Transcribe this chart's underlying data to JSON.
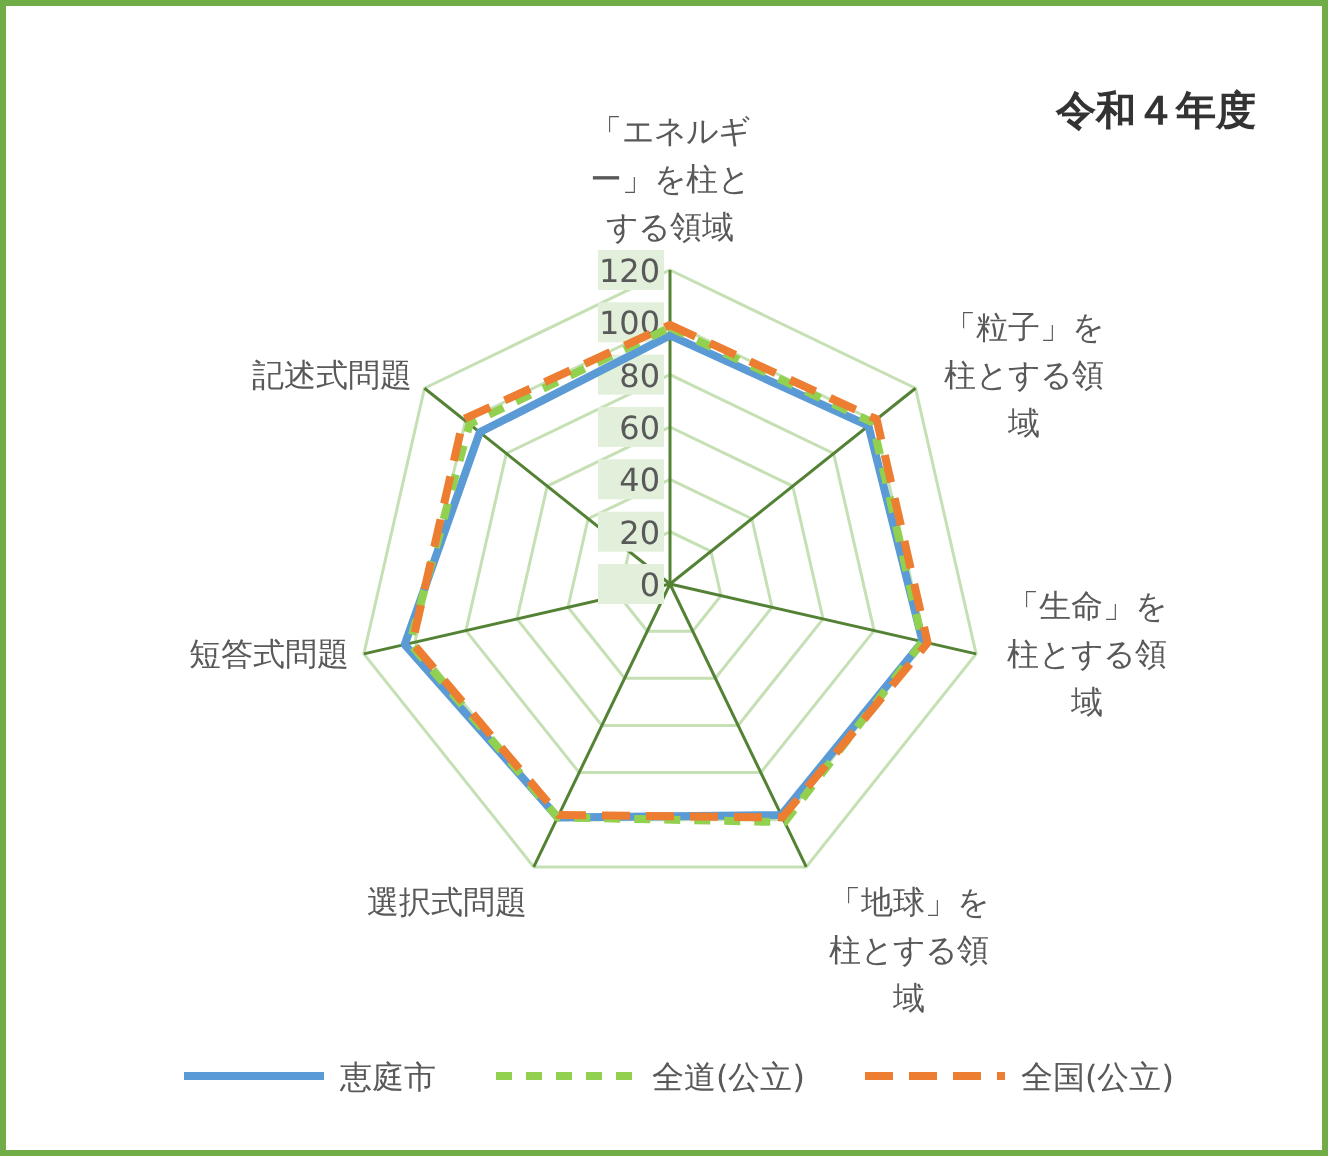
{
  "chart_data": {
    "type": "radar",
    "title": "令和４年度",
    "categories": [
      "「エネルギー」を柱とする領域",
      "「粒子」を柱とする領域",
      "「生命」を柱とする領域",
      "「地球」を柱とする領域",
      "選択式問題",
      "短答式問題",
      "記述式問題"
    ],
    "ylim": [
      0,
      120
    ],
    "yticks": [
      0,
      20,
      40,
      60,
      80,
      100,
      120
    ],
    "grid": true,
    "legend": "bottom",
    "series": [
      {
        "name": "恵庭市",
        "color": "#5b9bd5",
        "line_style": "solid",
        "values": [
          95,
          97,
          99,
          98,
          99,
          104,
          93
        ]
      },
      {
        "name": "全道(公立)",
        "color": "#92d050",
        "line_style": "dashed",
        "values": [
          98,
          99,
          99,
          101,
          99,
          102,
          98
        ]
      },
      {
        "name": "全国(公立)",
        "color": "#ed7d31",
        "line_style": "dashed",
        "values": [
          99,
          101,
          101,
          99,
          98,
          101,
          101
        ]
      }
    ]
  }
}
